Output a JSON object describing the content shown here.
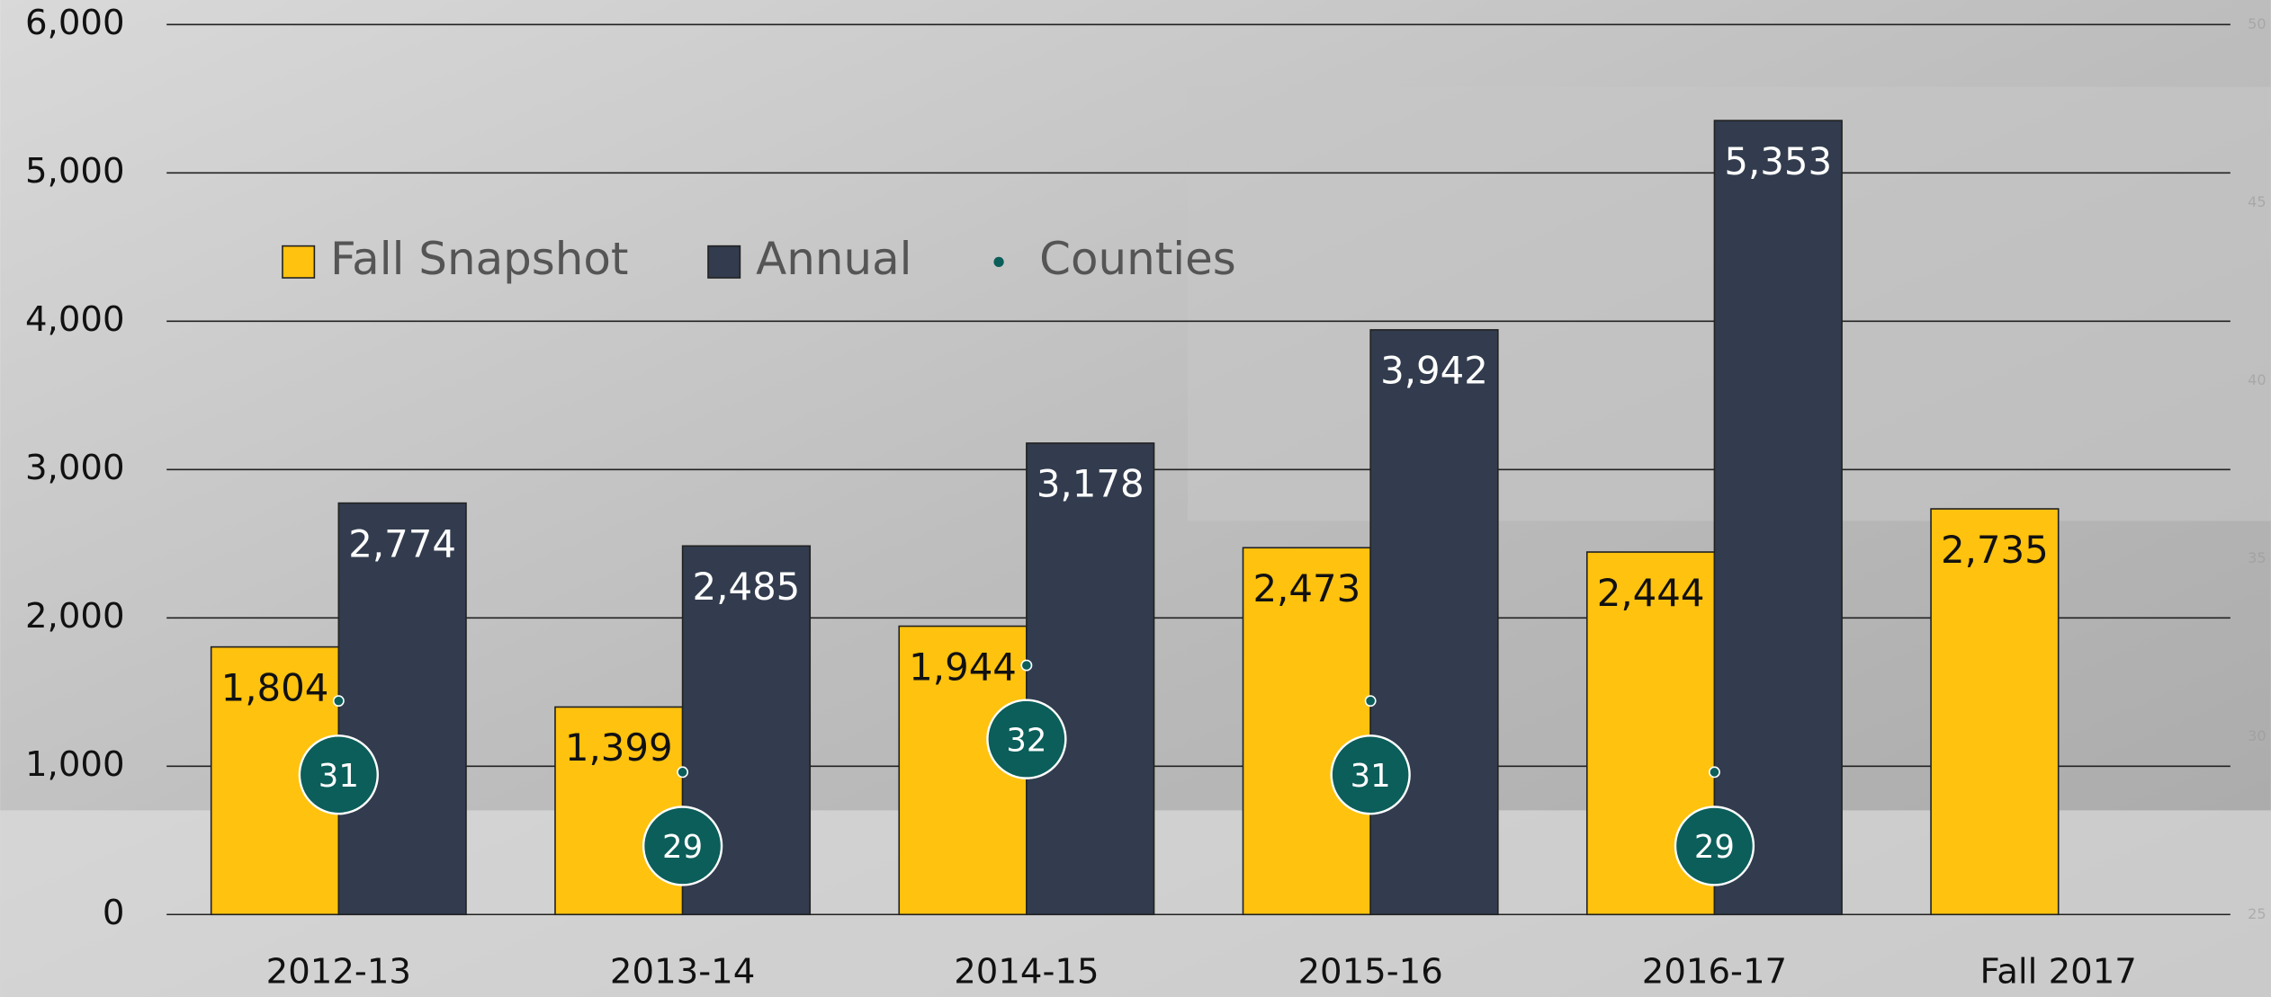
{
  "chart_data": {
    "type": "bar",
    "categories": [
      "2012-13",
      "2013-14",
      "2014-15",
      "2015-16",
      "2016-17",
      "Fall 2017"
    ],
    "series": [
      {
        "name": "Fall Snapshot",
        "color": "#ffc20e",
        "values": [
          1804,
          1399,
          1944,
          2473,
          2444,
          2735
        ],
        "value_labels": [
          "1,804",
          "1,399",
          "1,944",
          "2,473",
          "2,444",
          "2,735"
        ]
      },
      {
        "name": "Annual",
        "color": "#323c4e",
        "values": [
          2774,
          2485,
          3178,
          3942,
          5353,
          null
        ],
        "value_labels": [
          "2,774",
          "2,485",
          "3,178",
          "3,942",
          "5,353",
          null
        ]
      },
      {
        "name": "Counties",
        "color": "#0b5e5a",
        "axis": "y2",
        "values": [
          31,
          29,
          32,
          31,
          29,
          null
        ]
      }
    ],
    "ylim": [
      0,
      6000
    ],
    "yticks": [
      0,
      {
        "value": 1000,
        "label": "1,000"
      },
      {
        "value": 2000,
        "label": "2,000"
      },
      {
        "value": 3000,
        "label": "3,000"
      },
      {
        "value": 4000,
        "label": "4,000"
      },
      {
        "value": 5000,
        "label": "5,000"
      },
      {
        "value": 6000,
        "label": "6,000"
      }
    ],
    "y2lim": [
      25,
      50
    ],
    "y2ticks": [
      25,
      30,
      35,
      40,
      45,
      50
    ],
    "grid": true,
    "legend": "top-left"
  }
}
